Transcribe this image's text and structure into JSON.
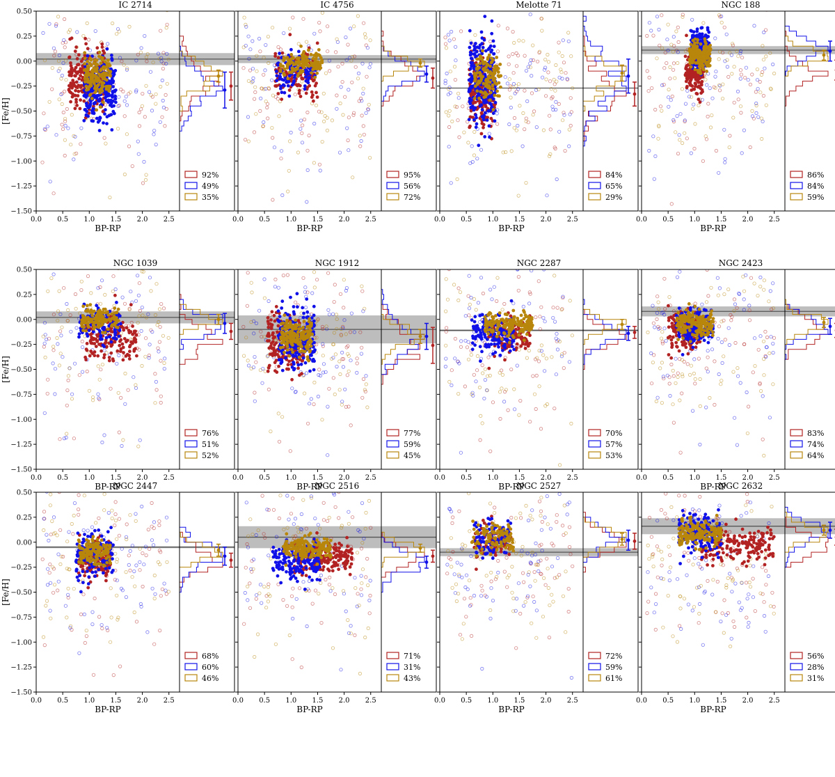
{
  "figure": {
    "ylabel": "[Fe/H]",
    "xlabel": "BP-RP",
    "colors": {
      "red": "#b22222",
      "blue": "#1010e8",
      "gold": "#b8860b",
      "grey": "#999999",
      "line": "#555555"
    }
  },
  "chart_data": [
    {
      "type": "scatter",
      "title": "IC 2714",
      "xlabel": "BP-RP",
      "ylabel": "[Fe/H]",
      "xlim": [
        0.0,
        2.7
      ],
      "ylim": [
        -1.5,
        0.5
      ],
      "x_ticks": [
        "0.0",
        "0.5",
        "1.0",
        "1.5",
        "2.0",
        "2.5"
      ],
      "y_ticks": [
        "0.50",
        "0.25",
        "0.00",
        "−0.25",
        "−0.50",
        "−0.75",
        "−1.00",
        "−1.25",
        "−1.50"
      ],
      "ref_feh": 0.02,
      "ref_err": 0.06,
      "legend": [
        "92%",
        "49%",
        "35%"
      ],
      "series_means": [
        {
          "name": "red",
          "mean": -0.25,
          "err": 0.14
        },
        {
          "name": "blue",
          "mean": -0.29,
          "err": 0.18
        },
        {
          "name": "gold",
          "mean": -0.15,
          "err": 0.06
        }
      ],
      "spread": [
        {
          "name": "red",
          "x_center": 0.95,
          "x_width": 0.7,
          "y_center": -0.2,
          "y_width": 0.35,
          "n": 200
        },
        {
          "name": "blue",
          "x_center": 1.2,
          "x_width": 0.6,
          "y_center": -0.28,
          "y_width": 0.35,
          "n": 250
        },
        {
          "name": "gold",
          "x_center": 1.15,
          "x_width": 0.5,
          "y_center": -0.15,
          "y_width": 0.25,
          "n": 150
        }
      ]
    },
    {
      "type": "scatter",
      "title": "IC 4756",
      "xlabel": "BP-RP",
      "ylabel": "[Fe/H]",
      "xlim": [
        0.0,
        2.7
      ],
      "ylim": [
        -1.5,
        0.5
      ],
      "x_ticks": [
        "0.0",
        "0.5",
        "1.0",
        "1.5",
        "2.0",
        "2.5"
      ],
      "y_ticks": [
        "0.50",
        "0.25",
        "0.00",
        "−0.25",
        "−0.50",
        "−0.75",
        "−1.00",
        "−1.25",
        "−1.50"
      ],
      "ref_feh": 0.02,
      "ref_err": 0.04,
      "legend": [
        "95%",
        "56%",
        "72%"
      ],
      "series_means": [
        {
          "name": "red",
          "mean": -0.17,
          "err": 0.1
        },
        {
          "name": "blue",
          "mean": -0.13,
          "err": 0.08
        },
        {
          "name": "gold",
          "mean": -0.02,
          "err": 0.04
        }
      ],
      "spread": [
        {
          "name": "red",
          "x_center": 1.1,
          "x_width": 0.8,
          "y_center": -0.15,
          "y_width": 0.25,
          "n": 120
        },
        {
          "name": "blue",
          "x_center": 1.1,
          "x_width": 0.8,
          "y_center": -0.12,
          "y_width": 0.2,
          "n": 90
        },
        {
          "name": "gold",
          "x_center": 1.2,
          "x_width": 0.8,
          "y_center": -0.03,
          "y_width": 0.15,
          "n": 130
        }
      ]
    },
    {
      "type": "scatter",
      "title": "Melotte 71",
      "xlabel": "BP-RP",
      "ylabel": "[Fe/H]",
      "xlim": [
        0.0,
        2.7
      ],
      "ylim": [
        -1.5,
        0.5
      ],
      "x_ticks": [
        "0.0",
        "0.5",
        "1.0",
        "1.5",
        "2.0",
        "2.5"
      ],
      "y_ticks": [
        "0.50",
        "0.25",
        "0.00",
        "−0.25",
        "−0.50",
        "−0.75",
        "−1.00",
        "−1.25",
        "−1.50"
      ],
      "ref_feh": -0.27,
      "ref_err": 0.0,
      "legend": [
        "84%",
        "65%",
        "29%"
      ],
      "series_means": [
        {
          "name": "red",
          "mean": -0.33,
          "err": 0.12
        },
        {
          "name": "blue",
          "mean": -0.15,
          "err": 0.17
        },
        {
          "name": "gold",
          "mean": -0.12,
          "err": 0.08
        }
      ],
      "spread": [
        {
          "name": "red",
          "x_center": 0.8,
          "x_width": 0.5,
          "y_center": -0.32,
          "y_width": 0.35,
          "n": 220
        },
        {
          "name": "blue",
          "x_center": 0.8,
          "x_width": 0.5,
          "y_center": -0.18,
          "y_width": 0.45,
          "n": 280
        },
        {
          "name": "gold",
          "x_center": 0.9,
          "x_width": 0.5,
          "y_center": -0.15,
          "y_width": 0.25,
          "n": 130
        }
      ]
    },
    {
      "type": "scatter",
      "title": "NGC 188",
      "xlabel": "BP-RP",
      "ylabel": "[Fe/H]",
      "xlim": [
        0.0,
        2.7
      ],
      "ylim": [
        -1.5,
        0.5
      ],
      "x_ticks": [
        "0.0",
        "0.5",
        "1.0",
        "1.5",
        "2.0",
        "2.5"
      ],
      "y_ticks": [
        "0.50",
        "0.25",
        "0.00",
        "−0.25",
        "−0.50",
        "−0.75",
        "−1.00",
        "−1.25",
        "−1.50"
      ],
      "ref_feh": 0.11,
      "ref_err": 0.04,
      "legend": [
        "86%",
        "84%",
        "59%"
      ],
      "series_means": [
        {
          "name": "red",
          "mean": -0.09,
          "err": 0.1
        },
        {
          "name": "blue",
          "mean": 0.1,
          "err": 0.1
        },
        {
          "name": "gold",
          "mean": 0.06,
          "err": 0.05
        }
      ],
      "spread": [
        {
          "name": "red",
          "x_center": 1.0,
          "x_width": 0.35,
          "y_center": -0.12,
          "y_width": 0.25,
          "n": 150
        },
        {
          "name": "blue",
          "x_center": 1.1,
          "x_width": 0.35,
          "y_center": 0.12,
          "y_width": 0.2,
          "n": 250
        },
        {
          "name": "gold",
          "x_center": 1.1,
          "x_width": 0.4,
          "y_center": 0.06,
          "y_width": 0.15,
          "n": 200
        }
      ]
    },
    {
      "type": "scatter",
      "title": "NGC 1039",
      "xlabel": "BP-RP",
      "ylabel": "[Fe/H]",
      "xlim": [
        0.0,
        2.7
      ],
      "ylim": [
        -1.5,
        0.5
      ],
      "x_ticks": [
        "0.0",
        "0.5",
        "1.0",
        "1.5",
        "2.0",
        "2.5"
      ],
      "y_ticks": [
        "0.50",
        "0.25",
        "0.00",
        "−0.25",
        "−0.50",
        "−0.75",
        "−1.00",
        "−1.25",
        "−1.50"
      ],
      "ref_feh": 0.02,
      "ref_err": 0.06,
      "legend": [
        "76%",
        "51%",
        "52%"
      ],
      "series_means": [
        {
          "name": "red",
          "mean": -0.12,
          "err": 0.08
        },
        {
          "name": "blue",
          "mean": -0.04,
          "err": 0.1
        },
        {
          "name": "gold",
          "mean": 0.0,
          "err": 0.05
        }
      ],
      "spread": [
        {
          "name": "red",
          "x_center": 1.4,
          "x_width": 1.0,
          "y_center": -0.2,
          "y_width": 0.25,
          "n": 150
        },
        {
          "name": "blue",
          "x_center": 1.2,
          "x_width": 0.8,
          "y_center": -0.05,
          "y_width": 0.2,
          "n": 110
        },
        {
          "name": "gold",
          "x_center": 1.2,
          "x_width": 0.7,
          "y_center": 0.0,
          "y_width": 0.12,
          "n": 130
        }
      ]
    },
    {
      "type": "scatter",
      "title": "NGC 1912",
      "xlabel": "BP-RP",
      "ylabel": "[Fe/H]",
      "xlim": [
        0.0,
        2.7
      ],
      "ylim": [
        -1.5,
        0.5
      ],
      "x_ticks": [
        "0.0",
        "0.5",
        "1.0",
        "1.5",
        "2.0",
        "2.5"
      ],
      "y_ticks": [
        "0.50",
        "0.25",
        "0.00",
        "−0.25",
        "−0.50",
        "−0.75",
        "−1.00",
        "−1.25",
        "−1.50"
      ],
      "ref_feh": -0.1,
      "ref_err": 0.14,
      "legend": [
        "77%",
        "59%",
        "45%"
      ],
      "series_means": [
        {
          "name": "red",
          "mean": -0.26,
          "err": 0.18
        },
        {
          "name": "blue",
          "mean": -0.17,
          "err": 0.13
        },
        {
          "name": "gold",
          "mean": -0.17,
          "err": 0.07
        }
      ],
      "spread": [
        {
          "name": "red",
          "x_center": 0.9,
          "x_width": 0.7,
          "y_center": -0.25,
          "y_width": 0.3,
          "n": 180
        },
        {
          "name": "blue",
          "x_center": 1.1,
          "x_width": 0.7,
          "y_center": -0.18,
          "y_width": 0.35,
          "n": 220
        },
        {
          "name": "gold",
          "x_center": 1.1,
          "x_width": 0.6,
          "y_center": -0.17,
          "y_width": 0.2,
          "n": 180
        }
      ]
    },
    {
      "type": "scatter",
      "title": "NGC 2287",
      "xlabel": "BP-RP",
      "ylabel": "[Fe/H]",
      "xlim": [
        0.0,
        2.7
      ],
      "ylim": [
        -1.5,
        0.5
      ],
      "x_ticks": [
        "0.0",
        "0.5",
        "1.0",
        "1.5",
        "2.0",
        "2.5"
      ],
      "y_ticks": [
        "0.50",
        "0.25",
        "0.00",
        "−0.25",
        "−0.50",
        "−0.75",
        "−1.00",
        "−1.25",
        "−1.50"
      ],
      "ref_feh": -0.11,
      "ref_err": 0.01,
      "legend": [
        "70%",
        "57%",
        "53%"
      ],
      "series_means": [
        {
          "name": "red",
          "mean": -0.13,
          "err": 0.06
        },
        {
          "name": "blue",
          "mean": -0.14,
          "err": 0.07
        },
        {
          "name": "gold",
          "mean": -0.05,
          "err": 0.05
        }
      ],
      "spread": [
        {
          "name": "red",
          "x_center": 1.3,
          "x_width": 0.8,
          "y_center": -0.18,
          "y_width": 0.2,
          "n": 130
        },
        {
          "name": "blue",
          "x_center": 1.0,
          "x_width": 0.8,
          "y_center": -0.15,
          "y_width": 0.2,
          "n": 150
        },
        {
          "name": "gold",
          "x_center": 1.3,
          "x_width": 0.9,
          "y_center": -0.05,
          "y_width": 0.15,
          "n": 170
        }
      ]
    },
    {
      "type": "scatter",
      "title": "NGC 2423",
      "xlabel": "BP-RP",
      "ylabel": "[Fe/H]",
      "xlim": [
        0.0,
        2.7
      ],
      "ylim": [
        -1.5,
        0.5
      ],
      "x_ticks": [
        "0.0",
        "0.5",
        "1.0",
        "1.5",
        "2.0",
        "2.5"
      ],
      "y_ticks": [
        "0.50",
        "0.25",
        "0.00",
        "−0.25",
        "−0.50",
        "−0.75",
        "−1.00",
        "−1.25",
        "−1.50"
      ],
      "ref_feh": 0.08,
      "ref_err": 0.05,
      "legend": [
        "83%",
        "74%",
        "64%"
      ],
      "series_means": [
        {
          "name": "red",
          "mean": -0.11,
          "err": 0.07
        },
        {
          "name": "blue",
          "mean": -0.07,
          "err": 0.08
        },
        {
          "name": "gold",
          "mean": -0.03,
          "err": 0.05
        }
      ],
      "spread": [
        {
          "name": "red",
          "x_center": 0.8,
          "x_width": 0.6,
          "y_center": -0.12,
          "y_width": 0.22,
          "n": 140
        },
        {
          "name": "blue",
          "x_center": 1.0,
          "x_width": 0.7,
          "y_center": -0.07,
          "y_width": 0.2,
          "n": 160
        },
        {
          "name": "gold",
          "x_center": 1.0,
          "x_width": 0.7,
          "y_center": -0.04,
          "y_width": 0.15,
          "n": 170
        }
      ]
    },
    {
      "type": "scatter",
      "title": "NGC 2447",
      "xlabel": "BP-RP",
      "ylabel": "[Fe/H]",
      "xlim": [
        0.0,
        2.7
      ],
      "ylim": [
        -1.5,
        0.5
      ],
      "x_ticks": [
        "0.0",
        "0.5",
        "1.0",
        "1.5",
        "2.0",
        "2.5"
      ],
      "y_ticks": [
        "0.50",
        "0.25",
        "0.00",
        "−0.25",
        "−0.50",
        "−0.75",
        "−1.00",
        "−1.25",
        "−1.50"
      ],
      "ref_feh": -0.05,
      "ref_err": 0.01,
      "legend": [
        "68%",
        "60%",
        "46%"
      ],
      "series_means": [
        {
          "name": "red",
          "mean": -0.18,
          "err": 0.07
        },
        {
          "name": "blue",
          "mean": -0.14,
          "err": 0.09
        },
        {
          "name": "gold",
          "mean": -0.08,
          "err": 0.06
        }
      ],
      "spread": [
        {
          "name": "red",
          "x_center": 1.1,
          "x_width": 0.6,
          "y_center": -0.18,
          "y_width": 0.2,
          "n": 130
        },
        {
          "name": "blue",
          "x_center": 1.1,
          "x_width": 0.7,
          "y_center": -0.13,
          "y_width": 0.25,
          "n": 150
        },
        {
          "name": "gold",
          "x_center": 1.1,
          "x_width": 0.6,
          "y_center": -0.1,
          "y_width": 0.15,
          "n": 160
        }
      ]
    },
    {
      "type": "scatter",
      "title": "NGC 2516",
      "xlabel": "BP-RP",
      "ylabel": "[Fe/H]",
      "xlim": [
        0.0,
        2.7
      ],
      "ylim": [
        -1.5,
        0.5
      ],
      "x_ticks": [
        "0.0",
        "0.5",
        "1.0",
        "1.5",
        "2.0",
        "2.5"
      ],
      "y_ticks": [
        "0.50",
        "0.25",
        "0.00",
        "−0.25",
        "−0.50",
        "−0.75",
        "−1.00",
        "−1.25",
        "−1.50"
      ],
      "ref_feh": 0.05,
      "ref_err": 0.11,
      "legend": [
        "71%",
        "31%",
        "43%"
      ],
      "series_means": [
        {
          "name": "red",
          "mean": -0.14,
          "err": 0.06
        },
        {
          "name": "blue",
          "mean": -0.2,
          "err": 0.06
        },
        {
          "name": "gold",
          "mean": -0.06,
          "err": 0.04
        }
      ],
      "spread": [
        {
          "name": "red",
          "x_center": 1.6,
          "x_width": 1.1,
          "y_center": -0.15,
          "y_width": 0.18,
          "n": 200
        },
        {
          "name": "blue",
          "x_center": 1.1,
          "x_width": 0.9,
          "y_center": -0.2,
          "y_width": 0.2,
          "n": 150
        },
        {
          "name": "gold",
          "x_center": 1.3,
          "x_width": 0.9,
          "y_center": -0.06,
          "y_width": 0.12,
          "n": 170
        }
      ]
    },
    {
      "type": "scatter",
      "title": "NGC 2527",
      "xlabel": "BP-RP",
      "ylabel": "[Fe/H]",
      "xlim": [
        0.0,
        2.7
      ],
      "ylim": [
        -1.5,
        0.5
      ],
      "x_ticks": [
        "0.0",
        "0.5",
        "1.0",
        "1.5",
        "2.0",
        "2.5"
      ],
      "y_ticks": [
        "0.50",
        "0.25",
        "0.00",
        "−0.25",
        "−0.50",
        "−0.75",
        "−1.00",
        "−1.25",
        "−1.50"
      ],
      "ref_feh": -0.1,
      "ref_err": 0.04,
      "legend": [
        "72%",
        "59%",
        "61%"
      ],
      "series_means": [
        {
          "name": "red",
          "mean": 0.01,
          "err": 0.08
        },
        {
          "name": "blue",
          "mean": 0.02,
          "err": 0.1
        },
        {
          "name": "gold",
          "mean": 0.03,
          "err": 0.06
        }
      ],
      "spread": [
        {
          "name": "red",
          "x_center": 1.0,
          "x_width": 0.7,
          "y_center": 0.0,
          "y_width": 0.2,
          "n": 80
        },
        {
          "name": "blue",
          "x_center": 1.0,
          "x_width": 0.7,
          "y_center": 0.03,
          "y_width": 0.22,
          "n": 90
        },
        {
          "name": "gold",
          "x_center": 1.0,
          "x_width": 0.8,
          "y_center": 0.03,
          "y_width": 0.15,
          "n": 110
        }
      ]
    },
    {
      "type": "scatter",
      "title": "NGC 2632",
      "xlabel": "BP-RP",
      "ylabel": "[Fe/H]",
      "xlim": [
        0.0,
        2.7
      ],
      "ylim": [
        -1.5,
        0.5
      ],
      "x_ticks": [
        "0.0",
        "0.5",
        "1.0",
        "1.5",
        "2.0",
        "2.5"
      ],
      "y_ticks": [
        "0.50",
        "0.25",
        "0.00",
        "−0.25",
        "−0.50",
        "−0.75",
        "−1.00",
        "−1.25",
        "−1.50"
      ],
      "ref_feh": 0.16,
      "ref_err": 0.08,
      "legend": [
        "56%",
        "28%",
        "31%"
      ],
      "series_means": [
        {
          "name": "red",
          "mean": 0.05,
          "err": 0.08
        },
        {
          "name": "blue",
          "mean": 0.12,
          "err": 0.08
        },
        {
          "name": "gold",
          "mean": 0.12,
          "err": 0.05
        }
      ],
      "spread": [
        {
          "name": "red",
          "x_center": 1.8,
          "x_width": 1.4,
          "y_center": -0.02,
          "y_width": 0.2,
          "n": 180
        },
        {
          "name": "blue",
          "x_center": 1.1,
          "x_width": 0.8,
          "y_center": 0.1,
          "y_width": 0.25,
          "n": 150
        },
        {
          "name": "gold",
          "x_center": 1.1,
          "x_width": 0.8,
          "y_center": 0.1,
          "y_width": 0.15,
          "n": 170
        }
      ]
    }
  ]
}
